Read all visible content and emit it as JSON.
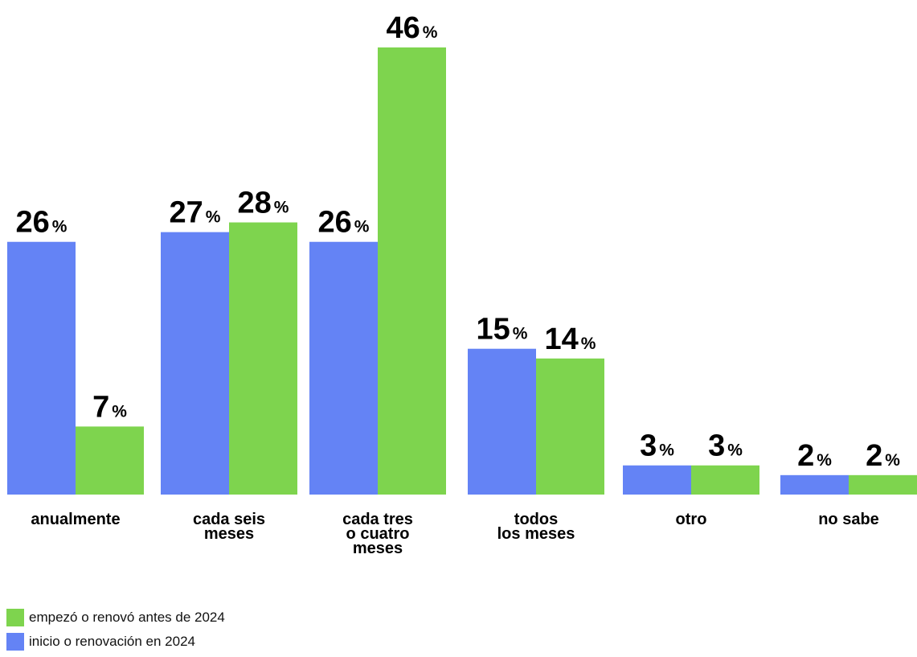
{
  "chart_data": {
    "type": "bar",
    "categories": [
      [
        "anualmente"
      ],
      [
        "cada seis",
        "meses"
      ],
      [
        "cada tres",
        "o cuatro",
        "meses"
      ],
      [
        "todos",
        "los meses"
      ],
      [
        "otro"
      ],
      [
        "no sabe"
      ]
    ],
    "series": [
      {
        "name": "inicio o renovación en 2024",
        "color": "#6483f5",
        "values": [
          26,
          27,
          26,
          15,
          3,
          2
        ]
      },
      {
        "name": "empezó o renovó antes de 2024",
        "color": "#7ed44e",
        "values": [
          7,
          28,
          46,
          14,
          3,
          2
        ]
      }
    ],
    "value_suffix": "%",
    "ylim": [
      0,
      46
    ],
    "grid": false,
    "legend_position": "bottom-left"
  },
  "legend": [
    {
      "label": "empezó o renovó antes de 2024",
      "color": "#7ed44e"
    },
    {
      "label": "inicio o renovación en 2024",
      "color": "#6483f5"
    }
  ]
}
